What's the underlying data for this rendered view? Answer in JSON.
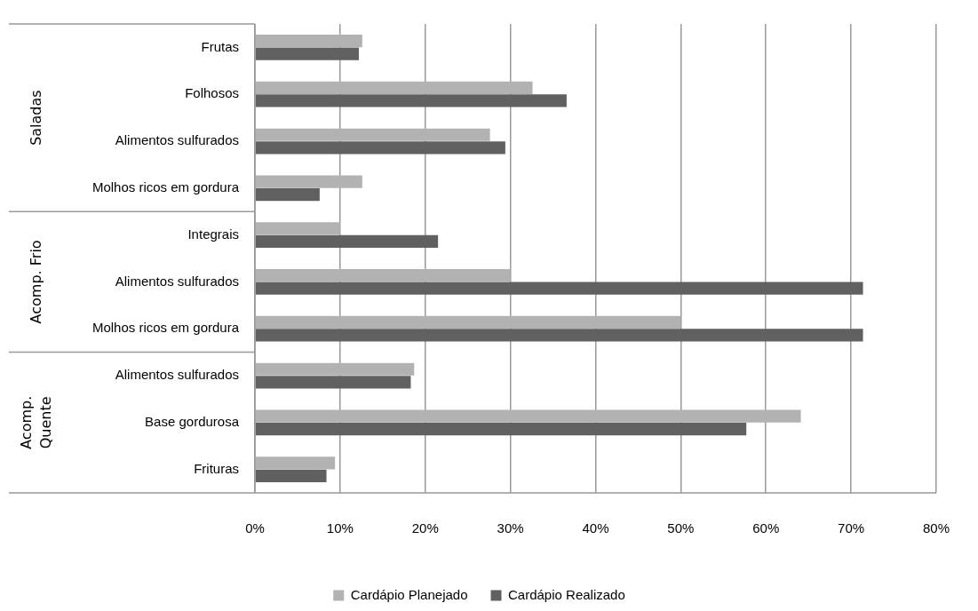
{
  "chart_data": {
    "type": "bar",
    "orientation": "horizontal",
    "categories": [
      "Frutas",
      "Folhosos",
      "Alimentos sulfurados",
      "Molhos ricos em gordura",
      "Integrais",
      "Alimentos sulfurados",
      "Molhos ricos em gordura",
      "Alimentos sulfurados",
      "Base gordurosa",
      "Frituras"
    ],
    "series": [
      {
        "name": "Cardápio Planejado",
        "color": "#b2b2b2",
        "values": [
          12.6,
          32.6,
          27.6,
          12.6,
          10.0,
          30.0,
          50.0,
          18.7,
          64.1,
          9.4
        ]
      },
      {
        "name": "Cardápio Realizado",
        "color": "#606060",
        "values": [
          12.2,
          36.6,
          29.4,
          7.6,
          21.5,
          71.4,
          71.4,
          18.3,
          57.7,
          8.4
        ]
      }
    ],
    "xlim": [
      0,
      80
    ],
    "xticks": [
      {
        "value": 0,
        "label": "0%"
      },
      {
        "value": 10,
        "label": "10%"
      },
      {
        "value": 20,
        "label": "20%"
      },
      {
        "value": 30,
        "label": "30%"
      },
      {
        "value": 40,
        "label": "40%"
      },
      {
        "value": 50,
        "label": "50%"
      },
      {
        "value": 60,
        "label": "60%"
      },
      {
        "value": 70,
        "label": "70%"
      },
      {
        "value": 80,
        "label": "80%"
      }
    ],
    "annotations": [
      "Saladas",
      "Acomp. Frio",
      "Acomp.\nQuente"
    ],
    "grid": "x",
    "legend": "bottom"
  }
}
